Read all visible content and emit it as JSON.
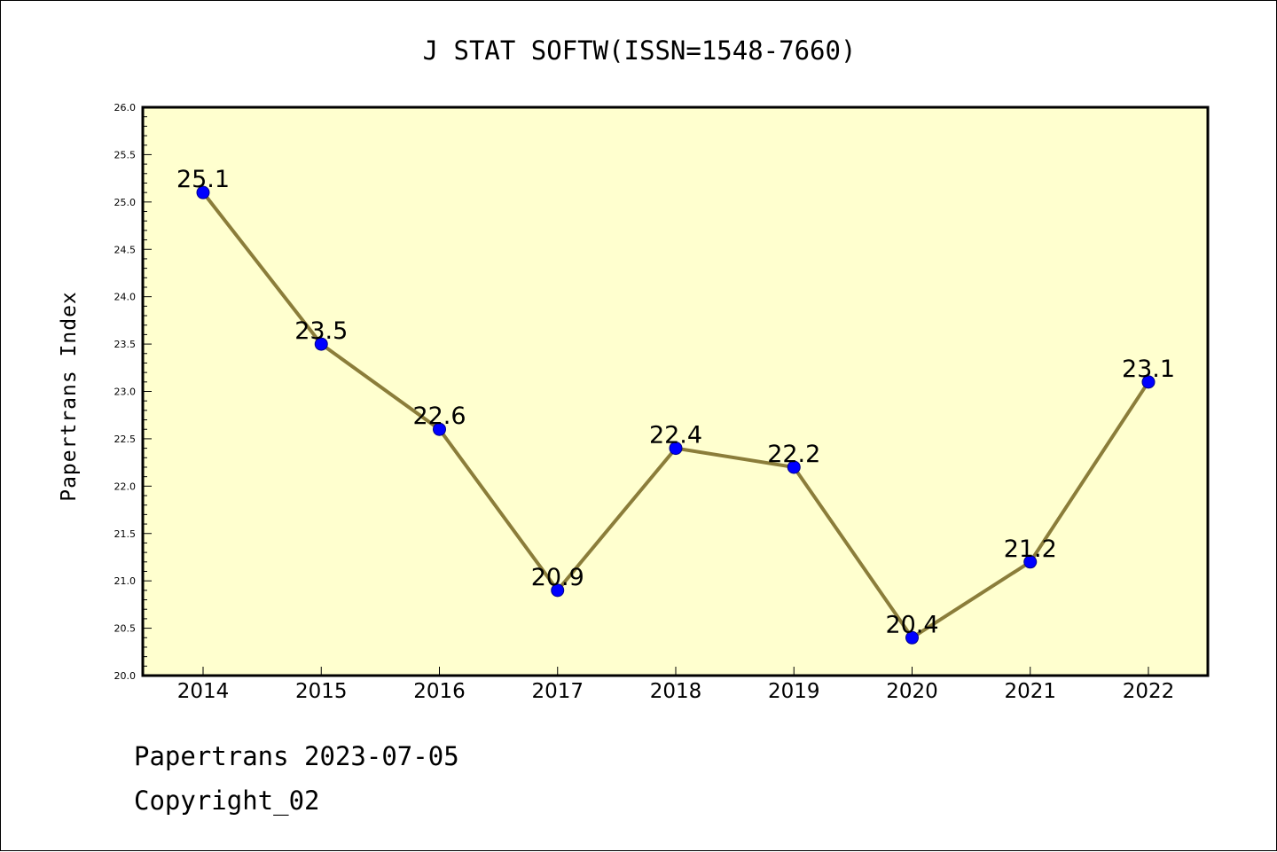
{
  "chart_data": {
    "type": "line",
    "title": "J STAT SOFTW(ISSN=1548-7660)",
    "xlabel": "",
    "ylabel": "Papertrans Index",
    "categories": [
      "2014",
      "2015",
      "2016",
      "2017",
      "2018",
      "2019",
      "2020",
      "2021",
      "2022"
    ],
    "series": [
      {
        "values": [
          25.1,
          23.5,
          22.6,
          20.9,
          22.4,
          22.2,
          20.4,
          21.2,
          23.1
        ],
        "labels": [
          "25.1",
          "23.5",
          "22.6",
          "20.9",
          "22.4",
          "22.2",
          "20.4",
          "21.2",
          "23.1"
        ]
      }
    ],
    "ylim": [
      20.0,
      26.0
    ],
    "yticks": [
      "20.0",
      "20.5",
      "21.0",
      "21.5",
      "22.0",
      "22.5",
      "23.0",
      "23.5",
      "24.0",
      "24.5",
      "25.0",
      "25.5",
      "26.0"
    ],
    "grid": false,
    "legend": "none",
    "colors": {
      "plot_background": "#ffffcf",
      "line": "#8b7d3a",
      "marker": "#0000ff",
      "marker_edge": "#00008b"
    }
  },
  "footer": {
    "date_text": "Papertrans 2023-07-05",
    "copyright_text": "Copyright_02"
  }
}
